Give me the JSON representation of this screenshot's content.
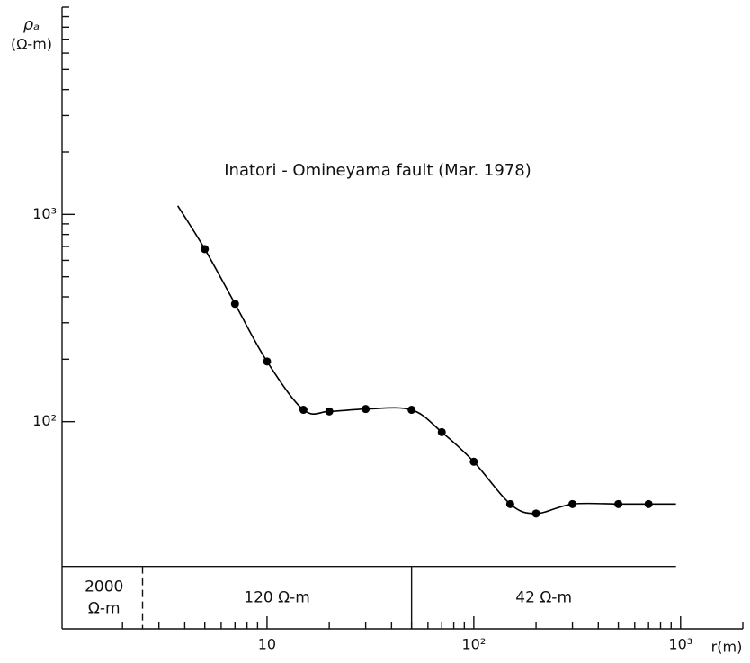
{
  "chart_data": {
    "type": "scatter",
    "title": "Inatori - Omineyama fault (Mar. 1978)",
    "ylabel_symbol": "ρₐ",
    "ylabel_unit": "(Ω-m)",
    "xlabel": "r(m)",
    "log_x": true,
    "log_y": true,
    "xlim": [
      1,
      2000
    ],
    "ylim": [
      10,
      10000
    ],
    "xticks": [
      10,
      {
        "value": 100,
        "label": "10²"
      },
      {
        "value": 1000,
        "label": "10³"
      }
    ],
    "yticks": [
      {
        "value": 100,
        "label": "10²"
      },
      {
        "value": 1000,
        "label": "10³"
      }
    ],
    "xminor": [
      2,
      3,
      4,
      5,
      6,
      7,
      8,
      9,
      20,
      30,
      40,
      50,
      60,
      70,
      80,
      90,
      200,
      300,
      400,
      500,
      600,
      700,
      800,
      900,
      2000
    ],
    "yminor": [
      200,
      300,
      400,
      500,
      600,
      700,
      800,
      900,
      2000,
      3000,
      4000,
      5000,
      6000,
      7000,
      8000,
      9000,
      10000
    ],
    "color": "#000000",
    "x": [
      5,
      7,
      10,
      15,
      20,
      30,
      50,
      70,
      100,
      150,
      200,
      300,
      500,
      700
    ],
    "values": [
      680,
      370,
      195,
      114,
      112,
      115,
      114,
      89,
      64,
      40,
      36,
      40,
      40,
      40
    ],
    "curve": {
      "x": [
        3.7,
        5,
        7,
        10,
        15,
        20,
        30,
        50,
        70,
        100,
        150,
        200,
        300,
        500,
        700,
        950
      ],
      "values": [
        1100,
        680,
        370,
        195,
        114,
        112,
        115,
        114,
        89,
        64,
        40,
        36,
        40,
        40,
        40,
        40
      ]
    },
    "layers": {
      "top": 20,
      "boundaries": [
        2.5,
        50
      ],
      "end": 950,
      "labels": [
        [
          "2000",
          "Ω-m"
        ],
        [
          "120  Ω-m"
        ],
        [
          "42  Ω-m"
        ]
      ]
    }
  }
}
